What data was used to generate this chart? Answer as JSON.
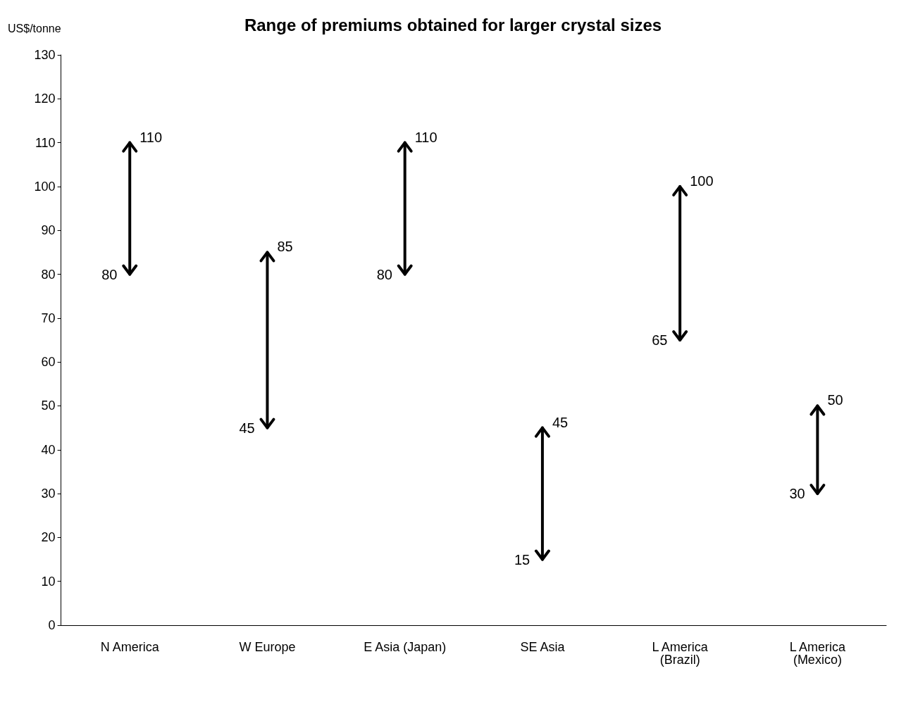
{
  "chart_data": {
    "type": "bar",
    "title": "Range of premiums obtained for larger crystal sizes",
    "ylabel": "US$/tonne",
    "categories": [
      "N America",
      "W Europe",
      "E Asia (Japan)",
      "SE Asia",
      "L America\n(Brazil)",
      "L America\n(Mexico)"
    ],
    "base": [
      80,
      45,
      80,
      15,
      65,
      30
    ],
    "values": [
      30,
      40,
      30,
      30,
      35,
      20
    ],
    "color": "#000000",
    "ylim": [
      0,
      130
    ],
    "yticks": [
      0,
      10,
      20,
      30,
      40,
      50,
      60,
      70,
      80,
      90,
      100,
      110,
      120,
      130
    ],
    "grid": false,
    "annotations": [
      {
        "text": "110",
        "x": "N America",
        "y": 110
      },
      {
        "text": "80",
        "x": "N America",
        "y": 80
      },
      {
        "text": "85",
        "x": "W Europe",
        "y": 85
      },
      {
        "text": "45",
        "x": "W Europe",
        "y": 45
      },
      {
        "text": "110",
        "x": "E Asia (Japan)",
        "y": 110
      },
      {
        "text": "80",
        "x": "E Asia (Japan)",
        "y": 80
      },
      {
        "text": "45",
        "x": "SE Asia",
        "y": 45
      },
      {
        "text": "15",
        "x": "SE Asia",
        "y": 15
      },
      {
        "text": "100",
        "x": "L America\n(Brazil)",
        "y": 100
      },
      {
        "text": "65",
        "x": "L America\n(Brazil)",
        "y": 65
      },
      {
        "text": "50",
        "x": "L America\n(Mexico)",
        "y": 50
      },
      {
        "text": "30",
        "x": "L America\n(Mexico)",
        "y": 30
      }
    ]
  }
}
